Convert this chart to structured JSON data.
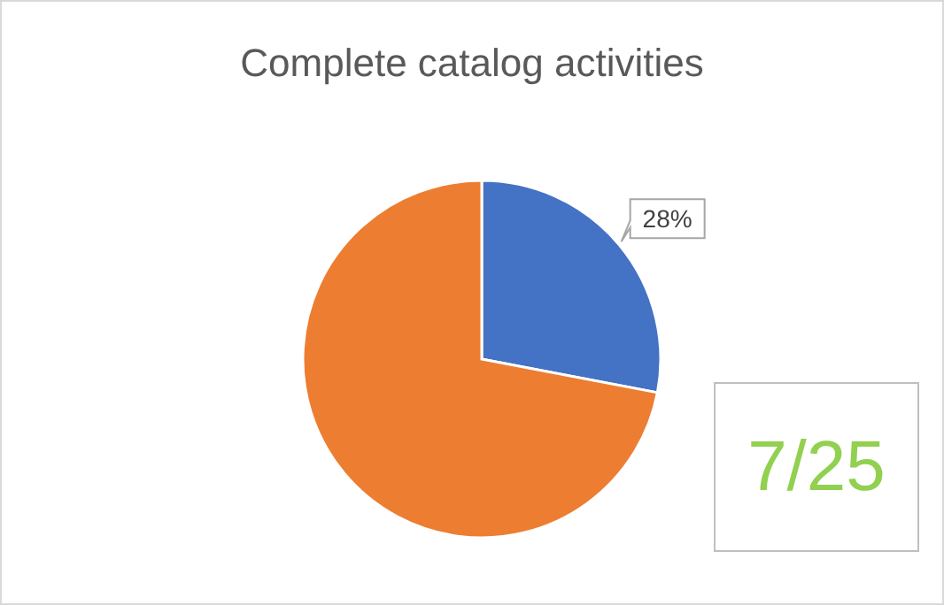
{
  "chart_data": {
    "type": "pie",
    "title": "Complete catalog activities",
    "categories": [
      null,
      null
    ],
    "values": [
      28,
      72
    ],
    "colors": [
      "#4472c4",
      "#ed7d31"
    ],
    "value_labels": [
      "28%",
      null
    ],
    "annotations": [
      "7/25"
    ],
    "legend": false
  }
}
